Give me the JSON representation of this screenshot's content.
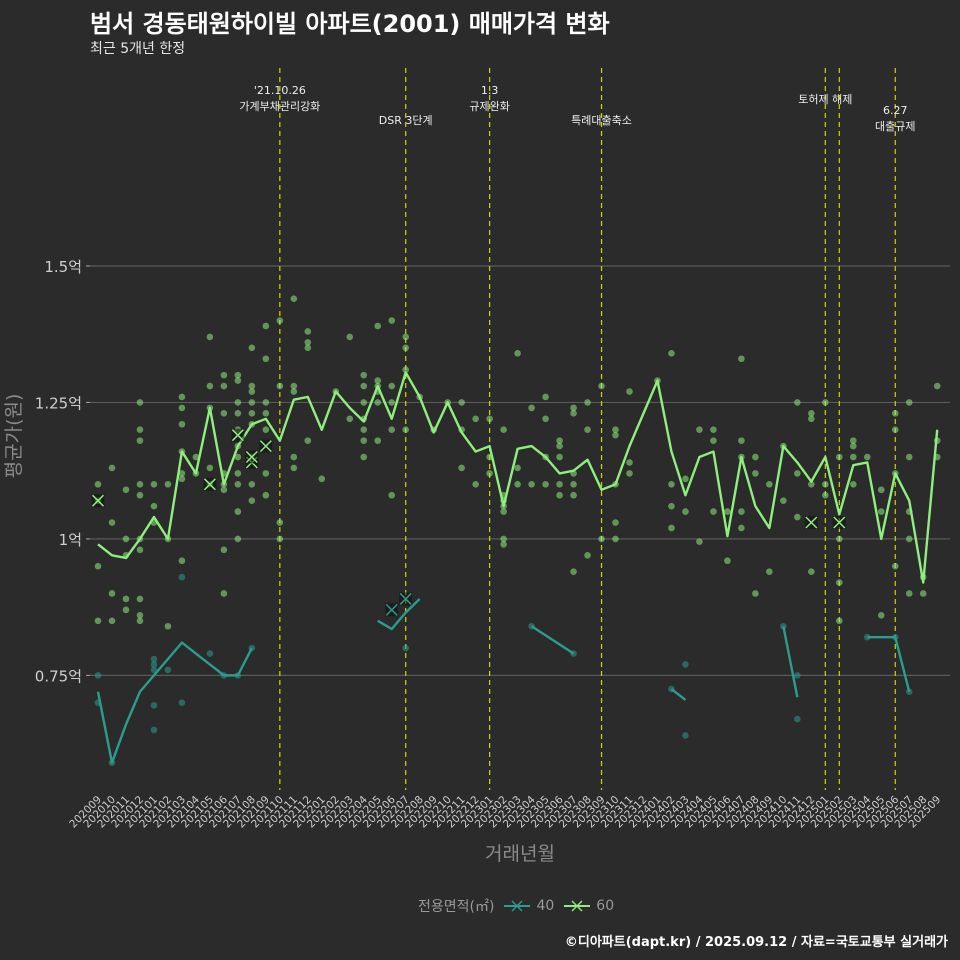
{
  "title": "범서 경동태원하이빌 아파트(2001) 매매가격 변화",
  "subtitle": "최근 5개년 한정",
  "caption": "©디아파트(dapt.kr) / 2025.09.12 / 자료=국토교통부 실거래가",
  "legend_title": "전용면적(㎡)",
  "colors": {
    "background": "#2b2b2b",
    "grid": "#5a5a5a",
    "s40": "#2a9d8f",
    "s60": "#90ee7e",
    "event": "#d4d400"
  },
  "chart_data": {
    "type": "line",
    "xlabel": "거래년월",
    "ylabel": "평균가(원)",
    "x": [
      "202009",
      "202010",
      "202011",
      "202012",
      "202101",
      "202102",
      "202103",
      "202104",
      "202105",
      "202106",
      "202107",
      "202108",
      "202109",
      "202110",
      "202111",
      "202112",
      "202201",
      "202202",
      "202203",
      "202204",
      "202205",
      "202206",
      "202207",
      "202208",
      "202209",
      "202210",
      "202211",
      "202212",
      "202301",
      "202302",
      "202303",
      "202304",
      "202305",
      "202306",
      "202307",
      "202308",
      "202309",
      "202310",
      "202311",
      "202312",
      "202401",
      "202402",
      "202403",
      "202404",
      "202405",
      "202406",
      "202407",
      "202408",
      "202409",
      "202410",
      "202411",
      "202412",
      "202501",
      "202502",
      "202503",
      "202504",
      "202505",
      "202506",
      "202507",
      "202508",
      "202509"
    ],
    "y_ticks": [
      {
        "value": 0.75,
        "label": "0.75억"
      },
      {
        "value": 1.0,
        "label": "1억"
      },
      {
        "value": 1.25,
        "label": "1.25억"
      },
      {
        "value": 1.5,
        "label": "1.5억"
      }
    ],
    "ylim": [
      0.54,
      1.63
    ],
    "grid": true,
    "legend_position": "bottom",
    "series": [
      {
        "name": "40",
        "color": "#2a9d8f",
        "values": [
          0.72,
          0.59,
          0.66,
          0.72,
          0.75,
          0.78,
          0.81,
          0.79,
          0.77,
          0.75,
          0.75,
          0.8,
          null,
          null,
          null,
          null,
          null,
          null,
          null,
          null,
          0.85,
          0.835,
          0.865,
          0.89,
          null,
          null,
          null,
          null,
          null,
          null,
          null,
          0.84,
          null,
          null,
          0.79,
          null,
          null,
          null,
          null,
          null,
          null,
          0.725,
          0.705,
          null,
          null,
          null,
          null,
          null,
          null,
          0.84,
          0.71,
          null,
          null,
          null,
          null,
          0.82,
          0.82,
          0.82,
          0.72,
          null,
          null
        ],
        "segments": [
          [
            0,
            11
          ],
          [
            20,
            23
          ],
          [
            31,
            34
          ],
          [
            41,
            42
          ],
          [
            49,
            50
          ],
          [
            55,
            58
          ]
        ]
      },
      {
        "name": "60",
        "color": "#90ee7e",
        "values": [
          0.99,
          0.97,
          0.965,
          1.0,
          1.04,
          1.0,
          1.16,
          1.12,
          1.24,
          1.1,
          1.17,
          1.21,
          1.22,
          1.18,
          1.255,
          1.26,
          1.2,
          1.27,
          1.24,
          1.215,
          1.28,
          1.22,
          1.305,
          1.26,
          1.195,
          1.25,
          1.195,
          1.16,
          1.17,
          1.06,
          1.165,
          1.17,
          1.15,
          1.12,
          1.125,
          1.145,
          1.09,
          1.1,
          1.17,
          1.23,
          1.29,
          1.16,
          1.08,
          1.15,
          1.16,
          1.005,
          1.15,
          1.06,
          1.02,
          1.17,
          1.14,
          1.105,
          1.15,
          1.045,
          1.135,
          1.14,
          1.0,
          1.12,
          1.07,
          0.92,
          1.2
        ]
      }
    ],
    "points": {
      "40": [
        [
          0,
          0.75
        ],
        [
          0,
          0.7
        ],
        [
          1,
          0.59
        ],
        [
          4,
          0.77
        ],
        [
          4,
          0.76
        ],
        [
          4,
          0.78
        ],
        [
          4,
          0.695
        ],
        [
          4,
          0.65
        ],
        [
          5,
          0.76
        ],
        [
          6,
          0.93
        ],
        [
          6,
          0.7
        ],
        [
          8,
          0.79
        ],
        [
          9,
          0.75
        ],
        [
          10,
          0.75
        ],
        [
          11,
          0.8
        ],
        [
          22,
          0.8
        ],
        [
          31,
          0.84
        ],
        [
          34,
          0.79
        ],
        [
          41,
          0.725
        ],
        [
          42,
          0.77
        ],
        [
          42,
          0.64
        ],
        [
          49,
          0.84
        ],
        [
          50,
          0.75
        ],
        [
          50,
          0.67
        ],
        [
          55,
          0.82
        ],
        [
          57,
          0.82
        ],
        [
          58,
          0.72
        ]
      ],
      "60": [
        [
          0,
          1.1
        ],
        [
          0,
          1.07
        ],
        [
          0,
          0.95
        ],
        [
          0,
          0.85
        ],
        [
          1,
          1.13
        ],
        [
          1,
          1.03
        ],
        [
          1,
          0.9
        ],
        [
          1,
          0.85
        ],
        [
          2,
          1.09
        ],
        [
          2,
          1.0
        ],
        [
          2,
          0.97
        ],
        [
          2,
          0.89
        ],
        [
          2,
          0.87
        ],
        [
          3,
          1.25
        ],
        [
          3,
          1.2
        ],
        [
          3,
          1.18
        ],
        [
          3,
          1.1
        ],
        [
          3,
          1.08
        ],
        [
          3,
          1.0
        ],
        [
          3,
          0.98
        ],
        [
          3,
          0.89
        ],
        [
          3,
          0.86
        ],
        [
          3,
          0.85
        ],
        [
          4,
          1.1
        ],
        [
          4,
          1.06
        ],
        [
          4,
          1.03
        ],
        [
          5,
          1.1
        ],
        [
          5,
          1.0
        ],
        [
          5,
          0.84
        ],
        [
          6,
          1.26
        ],
        [
          6,
          1.24
        ],
        [
          6,
          1.21
        ],
        [
          6,
          1.16
        ],
        [
          6,
          1.12
        ],
        [
          6,
          1.11
        ],
        [
          6,
          0.96
        ],
        [
          7,
          1.15
        ],
        [
          7,
          1.12
        ],
        [
          8,
          1.37
        ],
        [
          8,
          1.28
        ],
        [
          8,
          1.24
        ],
        [
          8,
          1.13
        ],
        [
          8,
          1.1
        ],
        [
          9,
          1.3
        ],
        [
          9,
          1.28
        ],
        [
          9,
          1.23
        ],
        [
          9,
          1.12
        ],
        [
          9,
          1.1
        ],
        [
          9,
          1.09
        ],
        [
          9,
          0.98
        ],
        [
          9,
          0.9
        ],
        [
          10,
          1.3
        ],
        [
          10,
          1.29
        ],
        [
          10,
          1.25
        ],
        [
          10,
          1.23
        ],
        [
          10,
          1.2
        ],
        [
          10,
          1.17
        ],
        [
          10,
          1.15
        ],
        [
          10,
          1.12
        ],
        [
          10,
          1.1
        ],
        [
          10,
          1.05
        ],
        [
          10,
          1.0
        ],
        [
          11,
          1.35
        ],
        [
          11,
          1.28
        ],
        [
          11,
          1.27
        ],
        [
          11,
          1.25
        ],
        [
          11,
          1.23
        ],
        [
          11,
          1.21
        ],
        [
          11,
          1.15
        ],
        [
          11,
          1.1
        ],
        [
          11,
          1.07
        ],
        [
          12,
          1.39
        ],
        [
          12,
          1.33
        ],
        [
          12,
          1.25
        ],
        [
          12,
          1.23
        ],
        [
          12,
          1.2
        ],
        [
          12,
          1.12
        ],
        [
          12,
          1.08
        ],
        [
          13,
          1.4
        ],
        [
          13,
          1.28
        ],
        [
          13,
          1.03
        ],
        [
          13,
          1.0
        ],
        [
          14,
          1.44
        ],
        [
          14,
          1.28
        ],
        [
          14,
          1.27
        ],
        [
          14,
          1.15
        ],
        [
          14,
          1.13
        ],
        [
          15,
          1.38
        ],
        [
          15,
          1.36
        ],
        [
          15,
          1.35
        ],
        [
          15,
          1.18
        ],
        [
          16,
          1.11
        ],
        [
          17,
          1.27
        ],
        [
          18,
          1.37
        ],
        [
          18,
          1.22
        ],
        [
          19,
          1.3
        ],
        [
          19,
          1.28
        ],
        [
          19,
          1.25
        ],
        [
          19,
          1.22
        ],
        [
          19,
          1.2
        ],
        [
          19,
          1.18
        ],
        [
          19,
          1.15
        ],
        [
          20,
          1.39
        ],
        [
          20,
          1.29
        ],
        [
          20,
          1.28
        ],
        [
          20,
          1.27
        ],
        [
          20,
          1.25
        ],
        [
          20,
          1.18
        ],
        [
          21,
          1.4
        ],
        [
          21,
          1.28
        ],
        [
          21,
          1.25
        ],
        [
          21,
          1.2
        ],
        [
          21,
          1.08
        ],
        [
          22,
          1.37
        ],
        [
          22,
          1.35
        ],
        [
          22,
          1.31
        ],
        [
          22,
          1.2
        ],
        [
          23,
          1.26
        ],
        [
          24,
          1.2
        ],
        [
          25,
          1.25
        ],
        [
          26,
          1.25
        ],
        [
          26,
          1.2
        ],
        [
          26,
          1.13
        ],
        [
          27,
          1.22
        ],
        [
          27,
          1.1
        ],
        [
          28,
          1.22
        ],
        [
          28,
          1.15
        ],
        [
          28,
          1.12
        ],
        [
          29,
          1.2
        ],
        [
          29,
          1.08
        ],
        [
          29,
          1.07
        ],
        [
          29,
          1.06
        ],
        [
          29,
          1.05
        ],
        [
          29,
          1.0
        ],
        [
          29,
          0.99
        ],
        [
          30,
          1.34
        ],
        [
          30,
          1.13
        ],
        [
          30,
          1.1
        ],
        [
          31,
          1.24
        ],
        [
          31,
          1.1
        ],
        [
          32,
          1.26
        ],
        [
          32,
          1.22
        ],
        [
          32,
          1.15
        ],
        [
          32,
          1.1
        ],
        [
          33,
          1.18
        ],
        [
          33,
          1.17
        ],
        [
          33,
          1.15
        ],
        [
          33,
          1.1
        ],
        [
          33,
          1.08
        ],
        [
          34,
          1.24
        ],
        [
          34,
          1.23
        ],
        [
          34,
          1.12
        ],
        [
          34,
          1.1
        ],
        [
          34,
          1.08
        ],
        [
          34,
          0.94
        ],
        [
          35,
          1.25
        ],
        [
          35,
          1.2
        ],
        [
          35,
          0.97
        ],
        [
          36,
          1.28
        ],
        [
          36,
          1.0
        ],
        [
          37,
          1.2
        ],
        [
          37,
          1.19
        ],
        [
          37,
          1.1
        ],
        [
          37,
          1.03
        ],
        [
          37,
          1.0
        ],
        [
          38,
          1.27
        ],
        [
          38,
          1.14
        ],
        [
          38,
          1.12
        ],
        [
          40,
          1.29
        ],
        [
          41,
          1.34
        ],
        [
          41,
          1.1
        ],
        [
          41,
          1.06
        ],
        [
          41,
          1.02
        ],
        [
          42,
          1.11
        ],
        [
          42,
          1.05
        ],
        [
          43,
          1.2
        ],
        [
          43,
          0.995
        ],
        [
          44,
          1.2
        ],
        [
          44,
          1.18
        ],
        [
          44,
          1.05
        ],
        [
          45,
          0.96
        ],
        [
          45,
          1.05
        ],
        [
          46,
          1.33
        ],
        [
          46,
          1.18
        ],
        [
          46,
          1.15
        ],
        [
          46,
          1.05
        ],
        [
          46,
          1.02
        ],
        [
          47,
          1.15
        ],
        [
          47,
          1.12
        ],
        [
          47,
          0.9
        ],
        [
          48,
          1.1
        ],
        [
          48,
          0.94
        ],
        [
          49,
          1.17
        ],
        [
          49,
          1.07
        ],
        [
          50,
          1.25
        ],
        [
          50,
          1.12
        ],
        [
          50,
          1.04
        ],
        [
          51,
          1.23
        ],
        [
          51,
          1.22
        ],
        [
          51,
          1.1
        ],
        [
          51,
          0.94
        ],
        [
          52,
          1.25
        ],
        [
          52,
          1.1
        ],
        [
          52,
          1.08
        ],
        [
          53,
          1.15
        ],
        [
          53,
          1.0
        ],
        [
          53,
          0.92
        ],
        [
          53,
          0.85
        ],
        [
          54,
          1.18
        ],
        [
          54,
          1.17
        ],
        [
          54,
          1.15
        ],
        [
          54,
          1.1
        ],
        [
          55,
          1.15
        ],
        [
          56,
          1.09
        ],
        [
          56,
          1.05
        ],
        [
          56,
          0.86
        ],
        [
          57,
          1.23
        ],
        [
          57,
          1.2
        ],
        [
          57,
          1.12
        ],
        [
          57,
          0.95
        ],
        [
          58,
          1.25
        ],
        [
          58,
          1.15
        ],
        [
          58,
          1.05
        ],
        [
          58,
          1.0
        ],
        [
          58,
          0.9
        ],
        [
          59,
          0.9
        ],
        [
          59,
          0.93
        ],
        [
          60,
          1.28
        ],
        [
          60,
          1.18
        ],
        [
          60,
          1.15
        ]
      ]
    },
    "crosses": {
      "40": [
        [
          21,
          0.87
        ],
        [
          22,
          0.89
        ]
      ],
      "60": [
        [
          0,
          1.07
        ],
        [
          8,
          1.1
        ],
        [
          10,
          1.19
        ],
        [
          11,
          1.14
        ],
        [
          11,
          1.15
        ],
        [
          12,
          1.17
        ],
        [
          51,
          1.03
        ],
        [
          53,
          1.03
        ]
      ]
    },
    "events": [
      {
        "x_index": 13,
        "line1": "'21.10.26",
        "line2": "가계부채관리강화"
      },
      {
        "x_index": 22,
        "line1": "",
        "line2": "DSR 3단계"
      },
      {
        "x_index": 28,
        "line1": "1.3",
        "line2": "규제완화"
      },
      {
        "x_index": 36,
        "line1": "",
        "line2": "특례대출축소"
      },
      {
        "x_index": 52,
        "line1": "",
        "line2": "토허제 해제"
      },
      {
        "x_index": 53,
        "line1": "",
        "line2": ""
      },
      {
        "x_index": 57,
        "line1": "6.27",
        "line2": "대출규제"
      }
    ]
  }
}
